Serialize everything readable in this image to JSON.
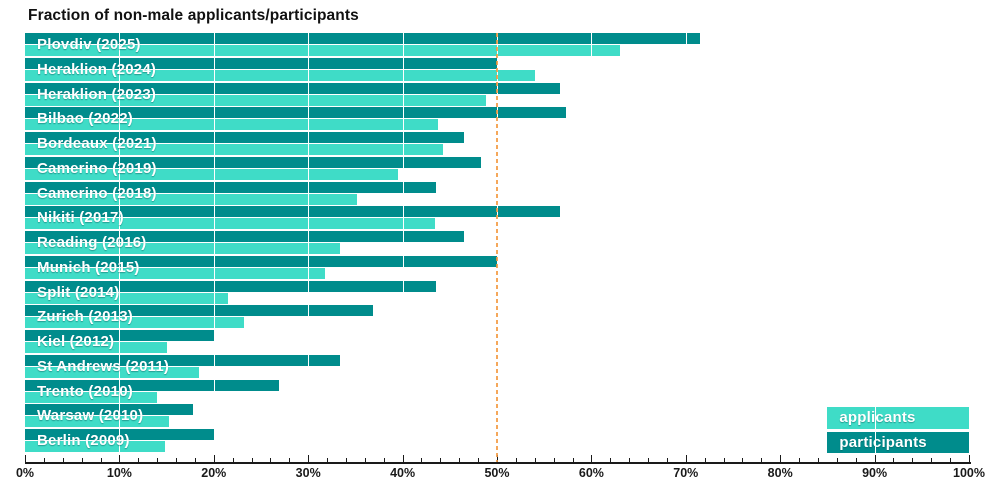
{
  "title": "Fraction of non-male applicants/participants",
  "colors": {
    "applicants": "#3FDCC7",
    "participants": "#008C8C",
    "reference_line": "#F3983D",
    "axis": "#1A1A1A",
    "background": "#FFFFFF",
    "bar_label_text": "#FFFFFF"
  },
  "legend": {
    "position": "lower right",
    "items": [
      {
        "label": "applicants",
        "color": "#3FDCC7"
      },
      {
        "label": "participants",
        "color": "#008C8C"
      }
    ]
  },
  "x_axis": {
    "min": 0,
    "max": 100,
    "major_tick_step": 10,
    "minor_tick_step": 2,
    "tick_labels": [
      "0%",
      "10%",
      "20%",
      "30%",
      "40%",
      "50%",
      "60%",
      "70%",
      "80%",
      "90%",
      "100%"
    ]
  },
  "reference_line": {
    "value": 50,
    "style": "dashed"
  },
  "chart_data": {
    "type": "bar",
    "orientation": "horizontal",
    "title": "Fraction of non-male applicants/participants",
    "unit": "%",
    "xlim": [
      0,
      100
    ],
    "grid": "white vertical gridlines every 10% over bars",
    "categories": [
      "Plovdiv (2025)",
      "Heraklion (2024)",
      "Heraklion (2023)",
      "Bilbao (2022)",
      "Bordeaux (2021)",
      "Camerino (2019)",
      "Camerino (2018)",
      "Nikiti (2017)",
      "Reading (2016)",
      "Munich (2015)",
      "Split (2014)",
      "Zurich (2013)",
      "Kiel (2012)",
      "St Andrews (2011)",
      "Trento (2010)",
      "Warsaw (2010)",
      "Berlin (2009)"
    ],
    "series": [
      {
        "name": "applicants",
        "values": [
          63.0,
          54.0,
          48.8,
          43.7,
          44.3,
          39.5,
          35.2,
          43.4,
          33.4,
          31.8,
          21.5,
          23.2,
          15.0,
          18.4,
          14.0,
          15.3,
          14.8
        ]
      },
      {
        "name": "participants",
        "values": [
          71.5,
          50.0,
          56.7,
          57.3,
          46.5,
          48.3,
          43.5,
          56.7,
          46.5,
          50.0,
          43.5,
          36.9,
          20.1,
          33.4,
          26.9,
          17.8,
          20.1
        ]
      }
    ]
  }
}
